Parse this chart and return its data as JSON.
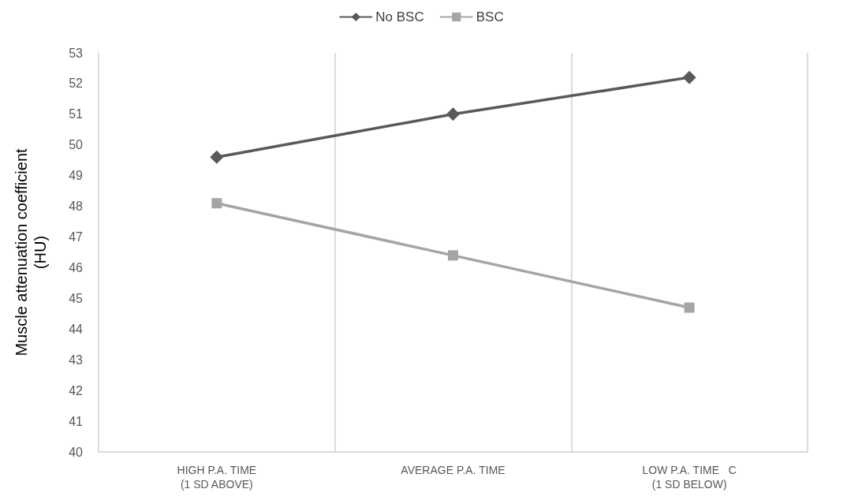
{
  "chart_data": {
    "type": "line",
    "ylabel": "Muscle attenuation coefficient\n(HU)",
    "categories": [
      "HIGH P.A. TIME\n(1 SD ABOVE)",
      "AVERAGE P.A. TIME",
      "LOW P.A. TIME   C\n(1 SD BELOW)"
    ],
    "series": [
      {
        "name": "No BSC",
        "color": "#595959",
        "marker": "diamond",
        "values": [
          49.6,
          51.0,
          52.2
        ]
      },
      {
        "name": "BSC",
        "color": "#a5a5a5",
        "marker": "square",
        "values": [
          48.1,
          46.4,
          44.7
        ]
      }
    ],
    "ylim": [
      40,
      53
    ],
    "yticks": [
      40,
      41,
      42,
      43,
      44,
      45,
      46,
      47,
      48,
      49,
      50,
      51,
      52,
      53
    ],
    "grid": "x",
    "legend": "top",
    "line_style": "solid"
  }
}
